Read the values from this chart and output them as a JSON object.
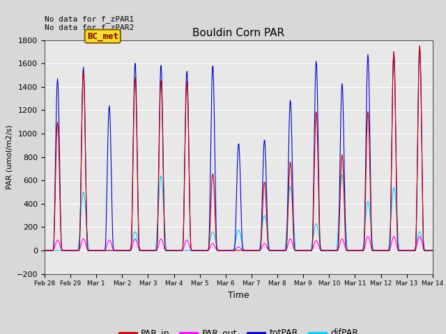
{
  "title": "Bouldin Corn PAR",
  "ylabel": "PAR (umol/m2/s)",
  "xlabel": "Time",
  "ylim": [
    -200,
    1800
  ],
  "yticks": [
    -200,
    0,
    200,
    400,
    600,
    800,
    1000,
    1200,
    1400,
    1600,
    1800
  ],
  "no_data_text_1": "No data for f_zPAR1",
  "no_data_text_2": "No data for f_zPAR2",
  "bc_met_label": "BC_met",
  "colors": {
    "PAR_in": "#cc0000",
    "PAR_out": "#ff00ff",
    "totPAR": "#0000cc",
    "difPAR": "#00ccff"
  },
  "background_color": "#e8e8e8",
  "fig_bg_color": "#d8d8d8",
  "peak_hours": 6,
  "totPAR_peaks": [
    1470,
    1570,
    1240,
    1605,
    1590,
    1540,
    1590,
    920,
    950,
    1290,
    1625,
    1430,
    1680,
    1700,
    1750
  ],
  "PAR_in_peaks": [
    1100,
    1530,
    0,
    1480,
    1460,
    1450,
    660,
    0,
    590,
    760,
    1190,
    820,
    1190,
    1700,
    1750
  ],
  "PAR_out_peaks": [
    90,
    100,
    90,
    100,
    100,
    90,
    60,
    30,
    60,
    100,
    85,
    100,
    120,
    120,
    120
  ],
  "difPAR_peaks": [
    0,
    500,
    0,
    160,
    640,
    0,
    160,
    175,
    300,
    550,
    230,
    650,
    420,
    540,
    160
  ],
  "tick_positions": [
    0,
    1,
    2,
    3,
    4,
    5,
    6,
    7,
    8,
    9,
    10,
    11,
    12,
    13,
    14,
    15
  ],
  "tick_labels": [
    "Feb 28",
    "Feb 29",
    "Mar 1",
    "Mar 2",
    "Mar 3",
    "Mar 4",
    "Mar 5",
    "Mar 6",
    "Mar 7",
    "Mar 8",
    "Mar 9",
    "Mar 10",
    "Mar 11",
    "Mar 12",
    "Mar 13",
    "Mar 14"
  ]
}
